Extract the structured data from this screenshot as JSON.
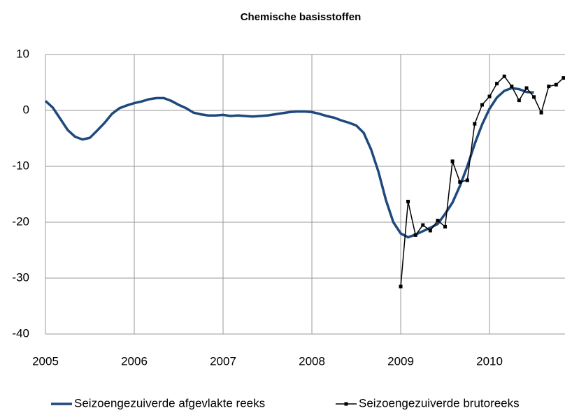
{
  "chart_data": {
    "type": "line",
    "title": "Chemische basisstoffen",
    "x": [
      2005,
      2005.083,
      2005.167,
      2005.25,
      2005.333,
      2005.417,
      2005.5,
      2005.583,
      2005.667,
      2005.75,
      2005.833,
      2005.917,
      2006,
      2006.083,
      2006.167,
      2006.25,
      2006.333,
      2006.417,
      2006.5,
      2006.583,
      2006.667,
      2006.75,
      2006.833,
      2006.917,
      2007,
      2007.083,
      2007.167,
      2007.25,
      2007.333,
      2007.417,
      2007.5,
      2007.583,
      2007.667,
      2007.75,
      2007.833,
      2007.917,
      2008,
      2008.083,
      2008.167,
      2008.25,
      2008.333,
      2008.417,
      2008.5,
      2008.583,
      2008.667,
      2008.75,
      2008.833,
      2008.917,
      2009,
      2009.083,
      2009.167,
      2009.25,
      2009.333,
      2009.417,
      2009.5,
      2009.583,
      2009.667,
      2009.75,
      2009.833,
      2009.917,
      2010,
      2010.083,
      2010.167,
      2010.25,
      2010.333,
      2010.417,
      2010.5,
      2010.583,
      2010.667,
      2010.75,
      2010.833
    ],
    "series": [
      {
        "name": "Seizoengezuiverde afgevlakte reeks",
        "color": "#1f497d",
        "values": [
          1.7,
          0.5,
          -1.5,
          -3.5,
          -4.7,
          -5.2,
          -4.9,
          -3.6,
          -2.2,
          -0.6,
          0.4,
          0.9,
          1.3,
          1.6,
          2.0,
          2.2,
          2.2,
          1.7,
          1.0,
          0.4,
          -0.4,
          -0.7,
          -0.9,
          -0.9,
          -0.8,
          -1.0,
          -0.9,
          -1.0,
          -1.1,
          -1.0,
          -0.9,
          -0.7,
          -0.5,
          -0.3,
          -0.2,
          -0.2,
          -0.3,
          -0.6,
          -1.0,
          -1.3,
          -1.8,
          -2.2,
          -2.7,
          -4.0,
          -7.0,
          -11.0,
          -16.0,
          -20.0,
          -22.0,
          -22.7,
          -22.2,
          -21.6,
          -21.0,
          -20.3,
          -18.5,
          -16.5,
          -13.5,
          -10.0,
          -6.0,
          -2.5,
          0.3,
          2.3,
          3.5,
          4.0,
          3.8,
          3.3,
          3.2,
          null,
          null,
          null,
          null
        ]
      },
      {
        "name": "Seizoengezuiverde brutoreeks",
        "color": "#000000",
        "values": [
          null,
          null,
          null,
          null,
          null,
          null,
          null,
          null,
          null,
          null,
          null,
          null,
          null,
          null,
          null,
          null,
          null,
          null,
          null,
          null,
          null,
          null,
          null,
          null,
          null,
          null,
          null,
          null,
          null,
          null,
          null,
          null,
          null,
          null,
          null,
          null,
          null,
          null,
          null,
          null,
          null,
          null,
          null,
          null,
          null,
          null,
          null,
          null,
          -31.5,
          -16.3,
          -22.3,
          -20.5,
          -21.5,
          -19.7,
          -20.8,
          -9.1,
          -12.8,
          -12.5,
          -2.4,
          1.0,
          2.5,
          4.8,
          6.1,
          4.3,
          1.8,
          4.0,
          2.4,
          -0.4,
          4.3,
          4.6,
          5.8
        ]
      }
    ],
    "xlim": [
      2005,
      2010.85
    ],
    "xticks": [
      2005,
      2006,
      2007,
      2008,
      2009,
      2010
    ],
    "ylim": [
      -40,
      10
    ],
    "yticks": [
      -40,
      -30,
      -20,
      -10,
      0,
      10
    ],
    "grid": true
  }
}
